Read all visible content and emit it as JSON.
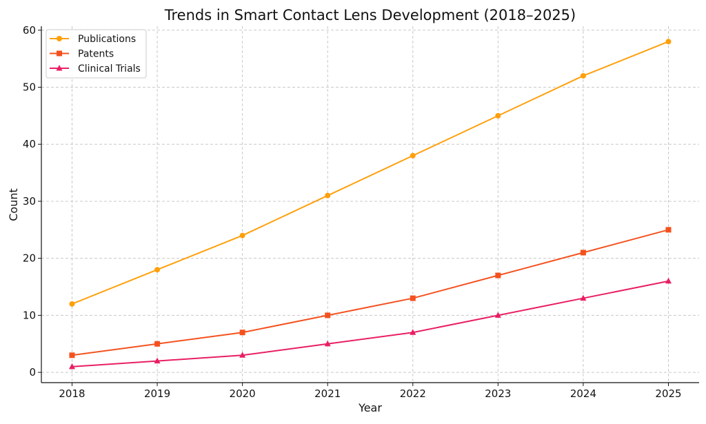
{
  "chart_data": {
    "type": "line",
    "title": "Trends in Smart Contact Lens Development (2018–2025)",
    "xlabel": "Year",
    "ylabel": "Count",
    "x": [
      2018,
      2019,
      2020,
      2021,
      2022,
      2023,
      2024,
      2025
    ],
    "xlim": [
      2017.64,
      2025.36
    ],
    "ylim": [
      -1.8,
      60.7
    ],
    "yticks": [
      0,
      10,
      20,
      30,
      40,
      50,
      60
    ],
    "grid": true,
    "legend_position": "top-left",
    "series": [
      {
        "name": "Publications",
        "marker": "circle",
        "color": "#ff9f0a",
        "values": [
          12,
          18,
          24,
          31,
          38,
          45,
          52,
          58
        ]
      },
      {
        "name": "Patents",
        "marker": "square",
        "color": "#f4511e",
        "values": [
          3,
          5,
          7,
          10,
          13,
          17,
          21,
          25
        ]
      },
      {
        "name": "Clinical Trials",
        "marker": "triangle",
        "color": "#e91e63",
        "values": [
          1,
          2,
          3,
          5,
          7,
          10,
          13,
          16
        ]
      }
    ]
  }
}
